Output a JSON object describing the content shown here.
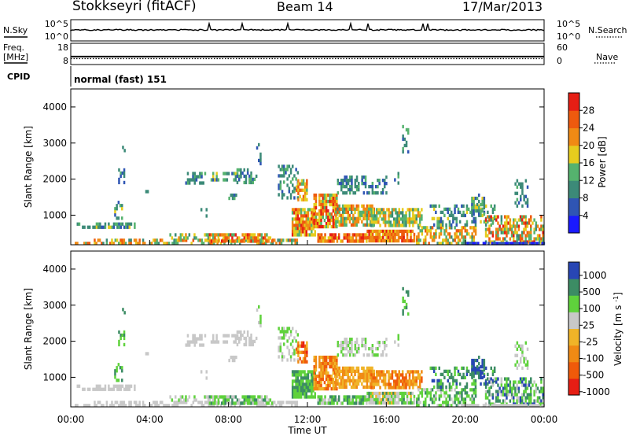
{
  "header": {
    "station": "Stokkseyri (fitACF)",
    "beam": "Beam 14",
    "date": "17/Mar/2013"
  },
  "colors": {
    "power_scale": [
      "#1a1aff",
      "#2f55b4",
      "#3c8a78",
      "#55b26e",
      "#e6cc1e",
      "#f08a14",
      "#ee5a0e",
      "#e61e14"
    ],
    "velocity_scale": [
      "#e61e14",
      "#f05a0a",
      "#f08a14",
      "#f0b428",
      "#c8c8c8",
      "#5fd23c",
      "#3c8c64",
      "#2846b4"
    ]
  },
  "chart_data": [
    {
      "type": "line",
      "name": "noise-panel",
      "left_label": "N.Sky",
      "right_label": "N.Search",
      "left_ticks": [
        "10^5",
        "10^0"
      ],
      "right_ticks": [
        "10^5",
        "10^0"
      ]
    },
    {
      "type": "line",
      "name": "frequency-panel",
      "left_label_1": "Freq.",
      "left_label_2": "[MHz]",
      "right_label": "Nave",
      "left_ticks": [
        "18",
        "8"
      ],
      "right_ticks": [
        "60",
        "0"
      ],
      "freq_ylim": [
        8,
        18
      ],
      "freq_value": 11.5,
      "nave_ylim": [
        0,
        60
      ],
      "nave_value": 15
    },
    {
      "type": "table",
      "name": "cpid-panel",
      "label": "CPID",
      "mode_text": "normal (fast) 151"
    },
    {
      "type": "heatmap",
      "name": "power-panel",
      "ylabel": "Slant Range [km]",
      "xlim_hours": [
        0,
        24
      ],
      "ylim": [
        180,
        4500
      ],
      "yticks": [
        1000,
        2000,
        3000,
        4000
      ],
      "colorbar_label": "Power [dB]",
      "colorbar_ticks": [
        "4",
        "8",
        "12",
        "16",
        "20",
        "24",
        "28"
      ],
      "colorbar_range": [
        0,
        30
      ]
    },
    {
      "type": "heatmap",
      "name": "velocity-panel",
      "ylabel": "Slant Range [km]",
      "xlim_hours": [
        0,
        24
      ],
      "ylim": [
        180,
        4500
      ],
      "yticks": [
        1000,
        2000,
        3000,
        4000
      ],
      "colorbar_label": "Velocity [m s^-1]",
      "colorbar_ticks": [
        "1000",
        "500",
        "100",
        "25",
        "-25",
        "-100",
        "-500",
        "-1000"
      ]
    }
  ],
  "xaxis": {
    "ticks": [
      "00:00",
      "04:00",
      "08:00",
      "12:00",
      "16:00",
      "20:00",
      "00:00"
    ],
    "label": "Time UT"
  }
}
